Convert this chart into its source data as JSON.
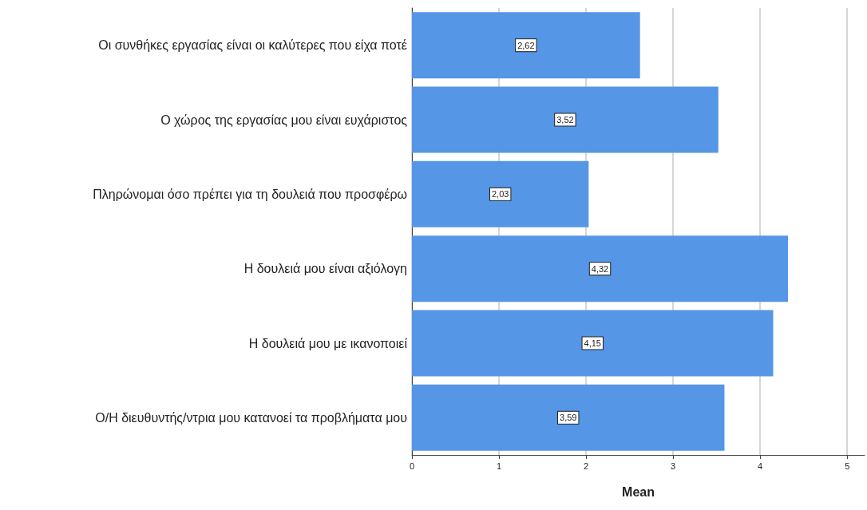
{
  "chart_data": {
    "type": "bar",
    "orientation": "horizontal",
    "xlabel": "Mean",
    "categories": [
      "Οι συνθήκες εργασίας είναι οι καλύτερες που είχα ποτέ",
      "Ο χώρος της εργασίας μου είναι ευχάριστος",
      "Πληρώνομαι όσο πρέπει για τη δουλειά που προσφέρω",
      "Η δουλειά μου είναι αξιόλογη",
      "Η δουλειά μου με ικανοποιεί",
      "Ο/Η διευθυντής/ντρια μου κατανοεί τα προβλήματα μου"
    ],
    "values": [
      2.62,
      3.52,
      2.03,
      4.32,
      4.15,
      3.59
    ],
    "value_labels": [
      "2,62",
      "3,52",
      "2,03",
      "4,32",
      "4,15",
      "3,59"
    ],
    "color": "#5596e6",
    "xlim": [
      0,
      5.2
    ],
    "xticks": [
      0,
      1,
      2,
      3,
      4,
      5
    ],
    "grid": "x"
  }
}
